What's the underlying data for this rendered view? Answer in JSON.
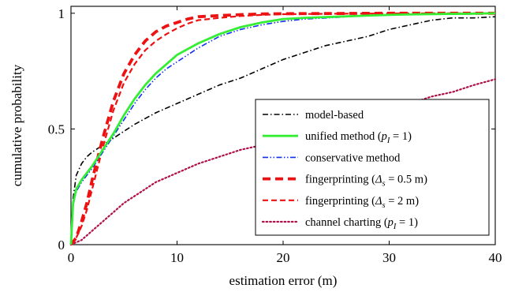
{
  "chart_data": {
    "type": "line",
    "xlabel": "estimation error (m)",
    "ylabel": "cumulative probability",
    "xlim": [
      0,
      40
    ],
    "ylim": [
      0,
      1.03
    ],
    "x_ticks": [
      0,
      10,
      20,
      30,
      40
    ],
    "x_tick_labels": [
      "0",
      "10",
      "20",
      "30",
      "40"
    ],
    "y_ticks": [
      0,
      0.5,
      1
    ],
    "y_tick_labels": [
      "0",
      "0.5",
      "1"
    ],
    "grid": false,
    "legend_position": "bottom-right",
    "series": [
      {
        "name": "model-based",
        "color": "#000000",
        "dash": "dashdot",
        "x": [
          0,
          0.2,
          0.5,
          1,
          1.5,
          2,
          3,
          4,
          5,
          6,
          8,
          10,
          12,
          14,
          16,
          18,
          20,
          22,
          24,
          26,
          28,
          30,
          32,
          34,
          36,
          38,
          40
        ],
        "y": [
          0,
          0.2,
          0.3,
          0.35,
          0.38,
          0.4,
          0.43,
          0.46,
          0.49,
          0.52,
          0.57,
          0.61,
          0.65,
          0.69,
          0.72,
          0.76,
          0.8,
          0.83,
          0.86,
          0.88,
          0.9,
          0.93,
          0.95,
          0.97,
          0.98,
          0.98,
          0.985
        ]
      },
      {
        "name": "unified method (p_I = 1)",
        "color": "#33ee33",
        "dash": "solid",
        "x": [
          0,
          0.2,
          0.5,
          1,
          1.5,
          2,
          3,
          4,
          5,
          6,
          7,
          8,
          9,
          10,
          12,
          14,
          16,
          18,
          20,
          22,
          25,
          28,
          30,
          32,
          35,
          38,
          40
        ],
        "y": [
          0,
          0.18,
          0.24,
          0.28,
          0.31,
          0.34,
          0.41,
          0.48,
          0.56,
          0.63,
          0.69,
          0.74,
          0.78,
          0.82,
          0.87,
          0.91,
          0.94,
          0.96,
          0.975,
          0.98,
          0.985,
          0.99,
          0.993,
          0.995,
          0.997,
          0.998,
          1.0
        ]
      },
      {
        "name": "conservative method",
        "color": "#1030ee",
        "dash": "dashdotdotted",
        "x": [
          0,
          0.2,
          0.5,
          1,
          1.5,
          2,
          3,
          4,
          5,
          6,
          7,
          8,
          9,
          10,
          12,
          14,
          16,
          18,
          20,
          22,
          25,
          28,
          30,
          32,
          35,
          38,
          40
        ],
        "y": [
          0,
          0.17,
          0.23,
          0.27,
          0.3,
          0.33,
          0.4,
          0.47,
          0.54,
          0.61,
          0.67,
          0.72,
          0.76,
          0.79,
          0.85,
          0.9,
          0.93,
          0.95,
          0.965,
          0.975,
          0.982,
          0.99,
          0.993,
          0.995,
          0.997,
          0.998,
          1.0
        ]
      },
      {
        "name": "fingerprinting (Δ_s = 0.5 m)",
        "color": "#ee1111",
        "dash": "dashed-thick",
        "x": [
          0,
          0.5,
          1,
          1.5,
          2,
          3,
          4,
          5,
          6,
          7,
          8,
          9,
          10,
          11,
          12,
          14,
          16,
          18,
          20,
          25,
          30,
          35,
          40
        ],
        "y": [
          0,
          0.03,
          0.1,
          0.18,
          0.28,
          0.46,
          0.62,
          0.74,
          0.82,
          0.88,
          0.92,
          0.945,
          0.96,
          0.975,
          0.985,
          0.99,
          0.994,
          0.997,
          0.998,
          0.999,
          1.0,
          1.0,
          1.0
        ]
      },
      {
        "name": "fingerprinting (Δ_s = 2 m)",
        "color": "#ee1111",
        "dash": "dashed",
        "x": [
          0,
          0.5,
          1,
          1.5,
          2,
          3,
          4,
          5,
          6,
          7,
          8,
          9,
          10,
          11,
          12,
          14,
          16,
          18,
          20,
          25,
          30,
          35,
          40
        ],
        "y": [
          0,
          0.03,
          0.08,
          0.15,
          0.24,
          0.42,
          0.58,
          0.7,
          0.78,
          0.84,
          0.88,
          0.91,
          0.935,
          0.955,
          0.97,
          0.98,
          0.988,
          0.993,
          0.996,
          0.998,
          0.999,
          1.0,
          1.0
        ]
      },
      {
        "name": "channel charting (p_I = 1)",
        "color": "#b0104a",
        "dash": "dotted",
        "x": [
          0,
          1,
          2,
          3,
          4,
          5,
          6,
          7,
          8,
          9,
          10,
          12,
          14,
          16,
          18,
          20,
          22,
          24,
          26,
          28,
          30,
          32,
          34,
          36,
          38,
          40
        ],
        "y": [
          0,
          0.02,
          0.06,
          0.1,
          0.14,
          0.18,
          0.21,
          0.24,
          0.27,
          0.29,
          0.31,
          0.35,
          0.38,
          0.41,
          0.43,
          0.45,
          0.48,
          0.5,
          0.53,
          0.56,
          0.59,
          0.61,
          0.64,
          0.66,
          0.69,
          0.715
        ]
      }
    ]
  },
  "legend": {
    "items": [
      {
        "pre": "model-based",
        "math": "",
        "post": ""
      },
      {
        "pre": "unified method (",
        "math": "p",
        "sub": "I",
        "eq": " = 1",
        "post": ")"
      },
      {
        "pre": "conservative method",
        "math": "",
        "post": ""
      },
      {
        "pre": "fingerprinting (",
        "math": "Δ",
        "sub": "s",
        "eq": " = 0.5 m",
        "post": ")"
      },
      {
        "pre": "fingerprinting (",
        "math": "Δ",
        "sub": "s",
        "eq": " = 2 m",
        "post": ")"
      },
      {
        "pre": "channel charting (",
        "math": "p",
        "sub": "I",
        "eq": " = 1",
        "post": ")"
      }
    ]
  }
}
